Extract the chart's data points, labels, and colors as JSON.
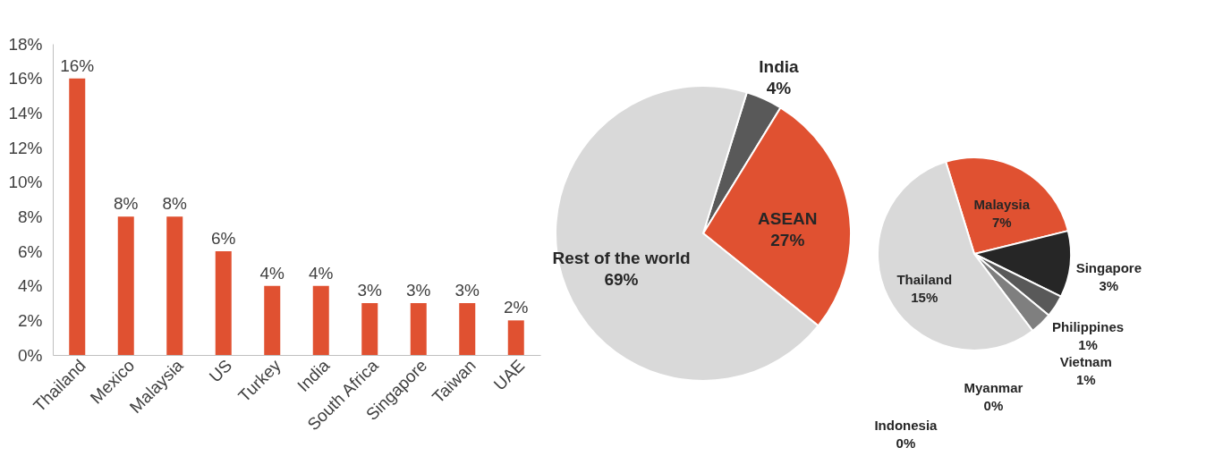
{
  "chart_data": [
    {
      "type": "bar",
      "categories": [
        "Thailand",
        "Mexico",
        "Malaysia",
        "US",
        "Turkey",
        "India",
        "South Africa",
        "Singapore",
        "Taiwan",
        "UAE"
      ],
      "values": [
        16,
        8,
        8,
        6,
        4,
        4,
        3,
        3,
        3,
        2
      ],
      "value_labels": [
        "16%",
        "8%",
        "8%",
        "6%",
        "4%",
        "4%",
        "3%",
        "3%",
        "3%",
        "2%"
      ],
      "color": "#e05131",
      "ylim": [
        0,
        18
      ],
      "yticks": [
        {
          "value": 0,
          "label": "0%"
        },
        {
          "value": 2,
          "label": "2%"
        },
        {
          "value": 4,
          "label": "4%"
        },
        {
          "value": 6,
          "label": "6%"
        },
        {
          "value": 8,
          "label": "8%"
        },
        {
          "value": 10,
          "label": "10%"
        },
        {
          "value": 12,
          "label": "12%"
        },
        {
          "value": 14,
          "label": "14%"
        },
        {
          "value": 16,
          "label": "16%"
        },
        {
          "value": 18,
          "label": "18%"
        }
      ]
    },
    {
      "type": "pie",
      "categories": [
        "India",
        "ASEAN",
        "Rest of the world"
      ],
      "values": [
        4,
        27,
        69
      ],
      "value_labels": [
        "4%",
        "27%",
        "69%"
      ],
      "colors": [
        "#595959",
        "#e05131",
        "#d9d9d9"
      ]
    },
    {
      "type": "pie",
      "categories": [
        "Malaysia",
        "Singapore",
        "Philippines",
        "Vietnam",
        "Myanmar",
        "Indonesia",
        "Thailand"
      ],
      "values": [
        7,
        3,
        1,
        1,
        0,
        0,
        15
      ],
      "value_labels": [
        "7%",
        "3%",
        "1%",
        "1%",
        "0%",
        "0%",
        "15%"
      ],
      "colors": [
        "#e05131",
        "#262626",
        "#595959",
        "#7f7f7f",
        "#a6a6a6",
        "#bfbfbf",
        "#d9d9d9"
      ]
    }
  ]
}
